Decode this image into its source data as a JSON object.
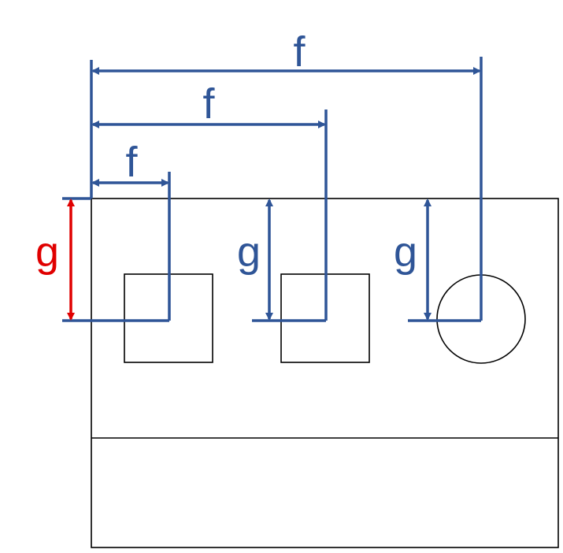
{
  "labels": {
    "f_top": "f",
    "f_mid": "f",
    "f_low": "f",
    "g_left": "g",
    "g_middle": "g",
    "g_right": "g"
  },
  "colors": {
    "dimension": "#2F5597",
    "highlight": "#E00000",
    "outline": "#000000"
  }
}
